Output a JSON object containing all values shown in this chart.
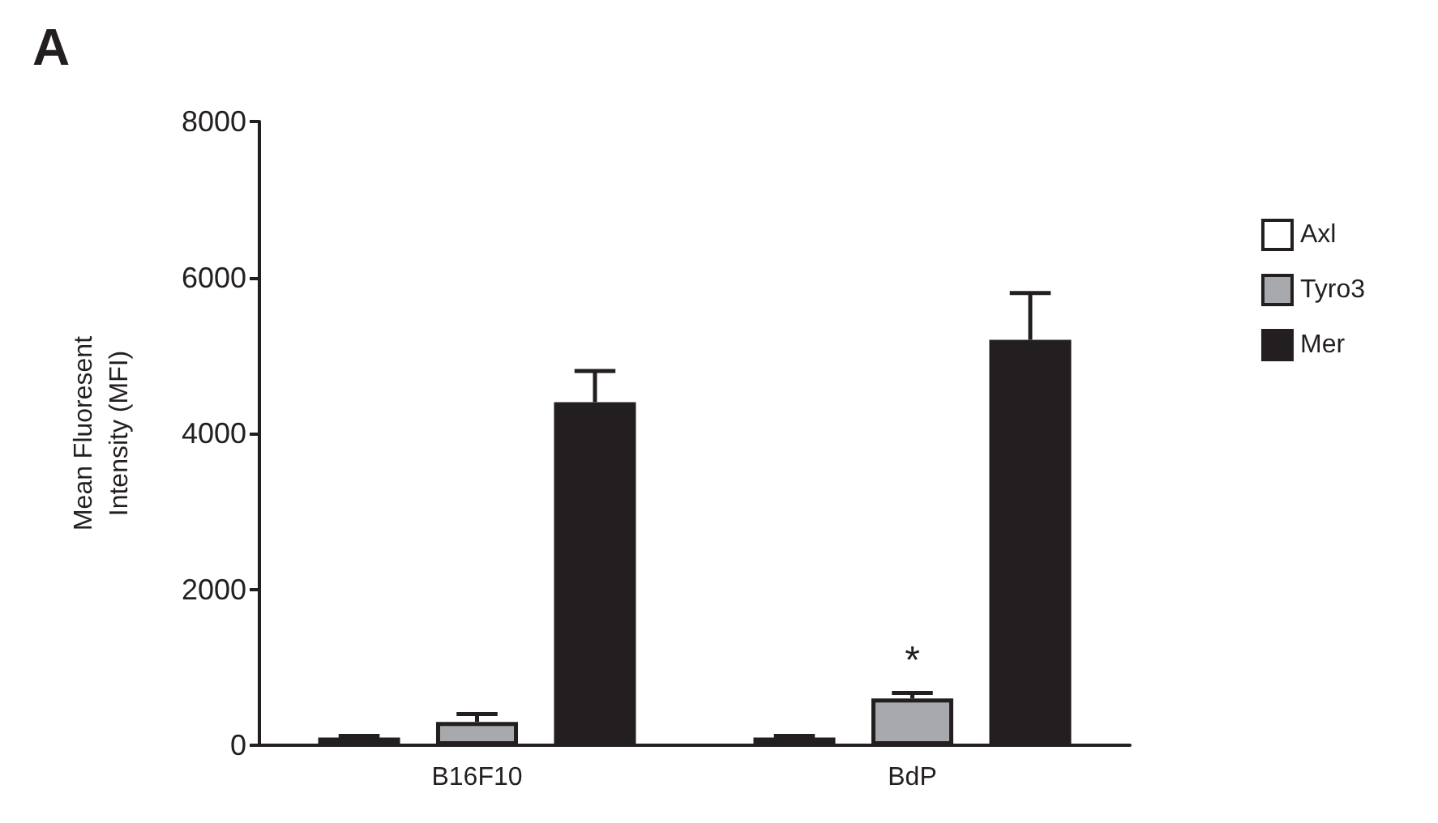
{
  "chart_data": {
    "type": "bar",
    "title": "A",
    "ylabel": "Mean Fluoresent\nIntensity (MFI)",
    "categories": [
      "B16F10",
      "BdP"
    ],
    "series": [
      {
        "name": "Axl",
        "color": "#ffffff",
        "values": [
          100,
          100
        ],
        "errors": [
          20,
          20
        ]
      },
      {
        "name": "Tyro3",
        "color": "#a7a9ac",
        "values": [
          300,
          600
        ],
        "errors": [
          100,
          70
        ]
      },
      {
        "name": "Mer",
        "color": "#231f20",
        "values": [
          4400,
          5200
        ],
        "errors": [
          400,
          600
        ]
      }
    ],
    "ylim": [
      0,
      8000
    ],
    "yticks": [
      0,
      2000,
      4000,
      6000,
      8000
    ],
    "grid": false,
    "legend": "right",
    "annotations": [
      "*"
    ]
  }
}
